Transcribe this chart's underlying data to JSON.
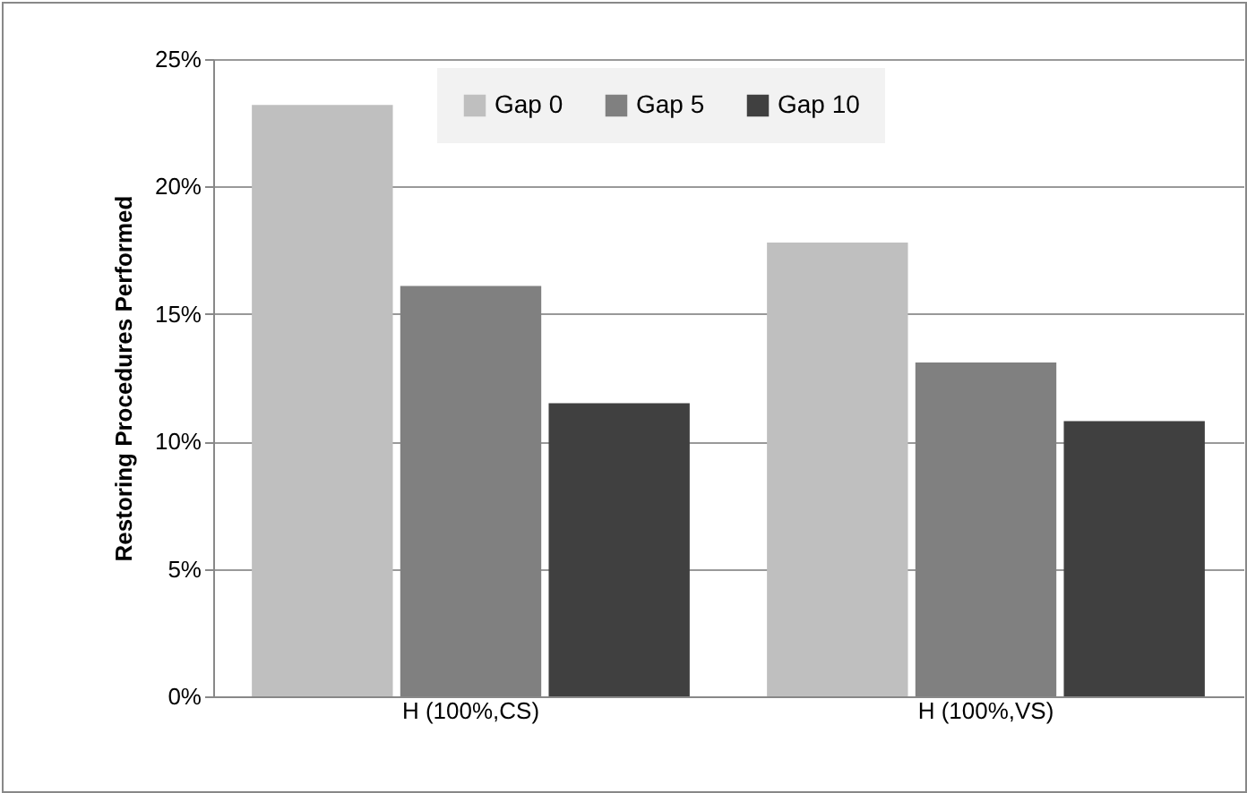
{
  "chart_data": {
    "type": "bar",
    "ylabel": "Restoring Procedures Performed",
    "categories": [
      "H (100%,CS)",
      "H (100%,VS)"
    ],
    "series": [
      {
        "name": "Gap 0",
        "color": "#bfbfbf",
        "values": [
          23.2,
          17.8
        ]
      },
      {
        "name": "Gap 5",
        "color": "#808080",
        "values": [
          16.1,
          13.1
        ]
      },
      {
        "name": "Gap 10",
        "color": "#404040",
        "values": [
          11.5,
          10.8
        ]
      }
    ],
    "ylim": [
      0,
      25
    ],
    "yticks": [
      {
        "value": 0,
        "label": "0%"
      },
      {
        "value": 5,
        "label": "5%"
      },
      {
        "value": 10,
        "label": "10%"
      },
      {
        "value": 15,
        "label": "15%"
      },
      {
        "value": 20,
        "label": "20%"
      },
      {
        "value": 25,
        "label": "25%"
      }
    ],
    "grid": "y",
    "legend": "top"
  }
}
